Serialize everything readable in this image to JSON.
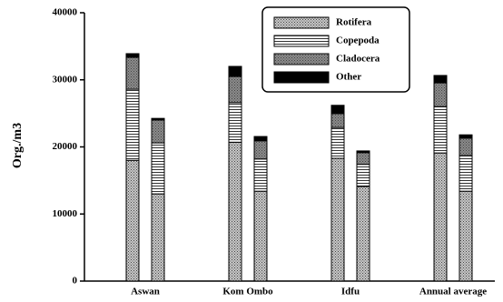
{
  "chart_data": {
    "type": "stacked_bar",
    "y_label": "Org./m3",
    "categories": [
      "Aswan",
      null,
      "Kom Ombo",
      null,
      "Idfu",
      null,
      "Annual average",
      null
    ],
    "series": [
      {
        "name": "Rotifera",
        "color": "#c8c8c8",
        "pattern": "dots",
        "values": [
          18000,
          13000,
          20700,
          13400,
          18300,
          14100,
          19100,
          13400
        ]
      },
      {
        "name": "Copepoda",
        "color": "#ffffff",
        "pattern": "lines",
        "values": [
          10600,
          7600,
          5900,
          4800,
          4600,
          3300,
          6900,
          5300
        ]
      },
      {
        "name": "Cladocera",
        "color": "#8c8c8c",
        "pattern": "dots",
        "values": [
          4750,
          3400,
          3900,
          2700,
          2050,
          1750,
          3550,
          2600
        ]
      },
      {
        "name": "Other",
        "color": "#000000",
        "pattern": "solid",
        "values": [
          550,
          250,
          1500,
          650,
          1250,
          250,
          1100,
          500
        ]
      }
    ],
    "ylim": [
      0,
      40000
    ],
    "yticks": [
      0,
      10000,
      20000,
      30000,
      40000
    ],
    "grid": false,
    "legend": "top-right"
  }
}
